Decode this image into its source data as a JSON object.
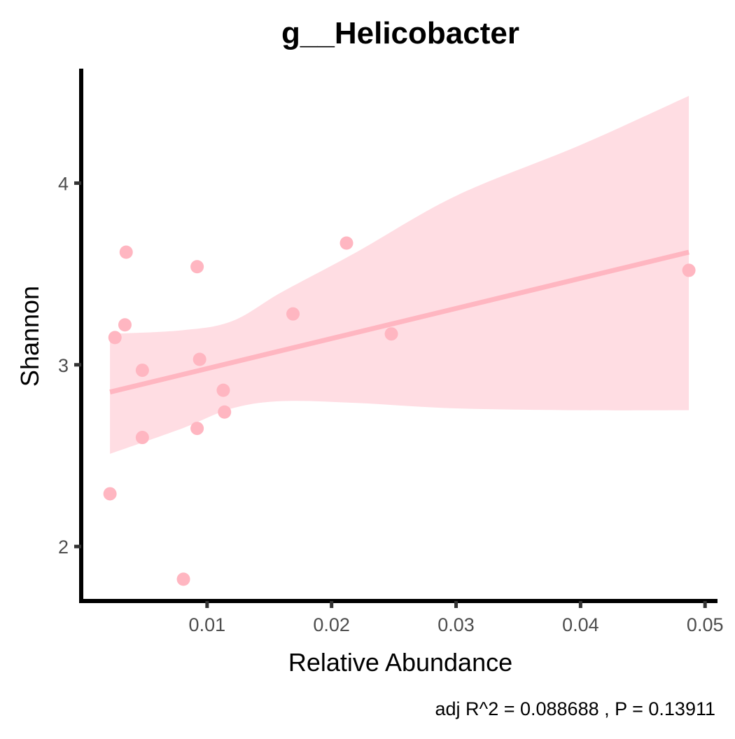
{
  "chart_data": {
    "type": "scatter",
    "title": "g__Helicobacter",
    "xlabel": "Relative Abundance",
    "ylabel": "Shannon",
    "caption": "adj R^2 =  0.088688 , P = 0.13911",
    "xlim": [
      0.0,
      0.051
    ],
    "ylim": [
      1.7,
      4.63
    ],
    "x_ticks": [
      0.01,
      0.02,
      0.03,
      0.04,
      0.05
    ],
    "x_tick_labels": [
      "0.01",
      "0.02",
      "0.03",
      "0.04",
      "0.05"
    ],
    "y_ticks": [
      2,
      3,
      4
    ],
    "y_tick_labels": [
      "2",
      "3",
      "4"
    ],
    "grid": false,
    "legend": "none",
    "colors": {
      "point": "#ffb6c1",
      "line": "#ffb6c1",
      "band": "#ffdde3",
      "axis": "#000000"
    },
    "points": [
      {
        "x": 0.0022,
        "y": 2.29
      },
      {
        "x": 0.0026,
        "y": 3.15
      },
      {
        "x": 0.0034,
        "y": 3.22
      },
      {
        "x": 0.0035,
        "y": 3.62
      },
      {
        "x": 0.0048,
        "y": 2.97
      },
      {
        "x": 0.0048,
        "y": 2.6
      },
      {
        "x": 0.0081,
        "y": 1.82
      },
      {
        "x": 0.0092,
        "y": 3.54
      },
      {
        "x": 0.0092,
        "y": 2.65
      },
      {
        "x": 0.0094,
        "y": 3.03
      },
      {
        "x": 0.0113,
        "y": 2.86
      },
      {
        "x": 0.0114,
        "y": 2.74
      },
      {
        "x": 0.0169,
        "y": 3.28
      },
      {
        "x": 0.0212,
        "y": 3.67
      },
      {
        "x": 0.0248,
        "y": 3.17
      },
      {
        "x": 0.0487,
        "y": 3.52
      }
    ],
    "fit": {
      "x0": 0.0022,
      "y0": 2.85,
      "x1": 0.0487,
      "y1": 3.62
    },
    "band_upper": [
      [
        0.0022,
        3.17
      ],
      [
        0.008,
        3.19
      ],
      [
        0.012,
        3.24
      ],
      [
        0.016,
        3.4
      ],
      [
        0.022,
        3.62
      ],
      [
        0.03,
        3.93
      ],
      [
        0.04,
        4.21
      ],
      [
        0.0487,
        4.48
      ]
    ],
    "band_lower": [
      [
        0.0022,
        2.51
      ],
      [
        0.008,
        2.65
      ],
      [
        0.012,
        2.76
      ],
      [
        0.016,
        2.8
      ],
      [
        0.022,
        2.79
      ],
      [
        0.03,
        2.76
      ],
      [
        0.04,
        2.75
      ],
      [
        0.0487,
        2.75
      ]
    ]
  }
}
